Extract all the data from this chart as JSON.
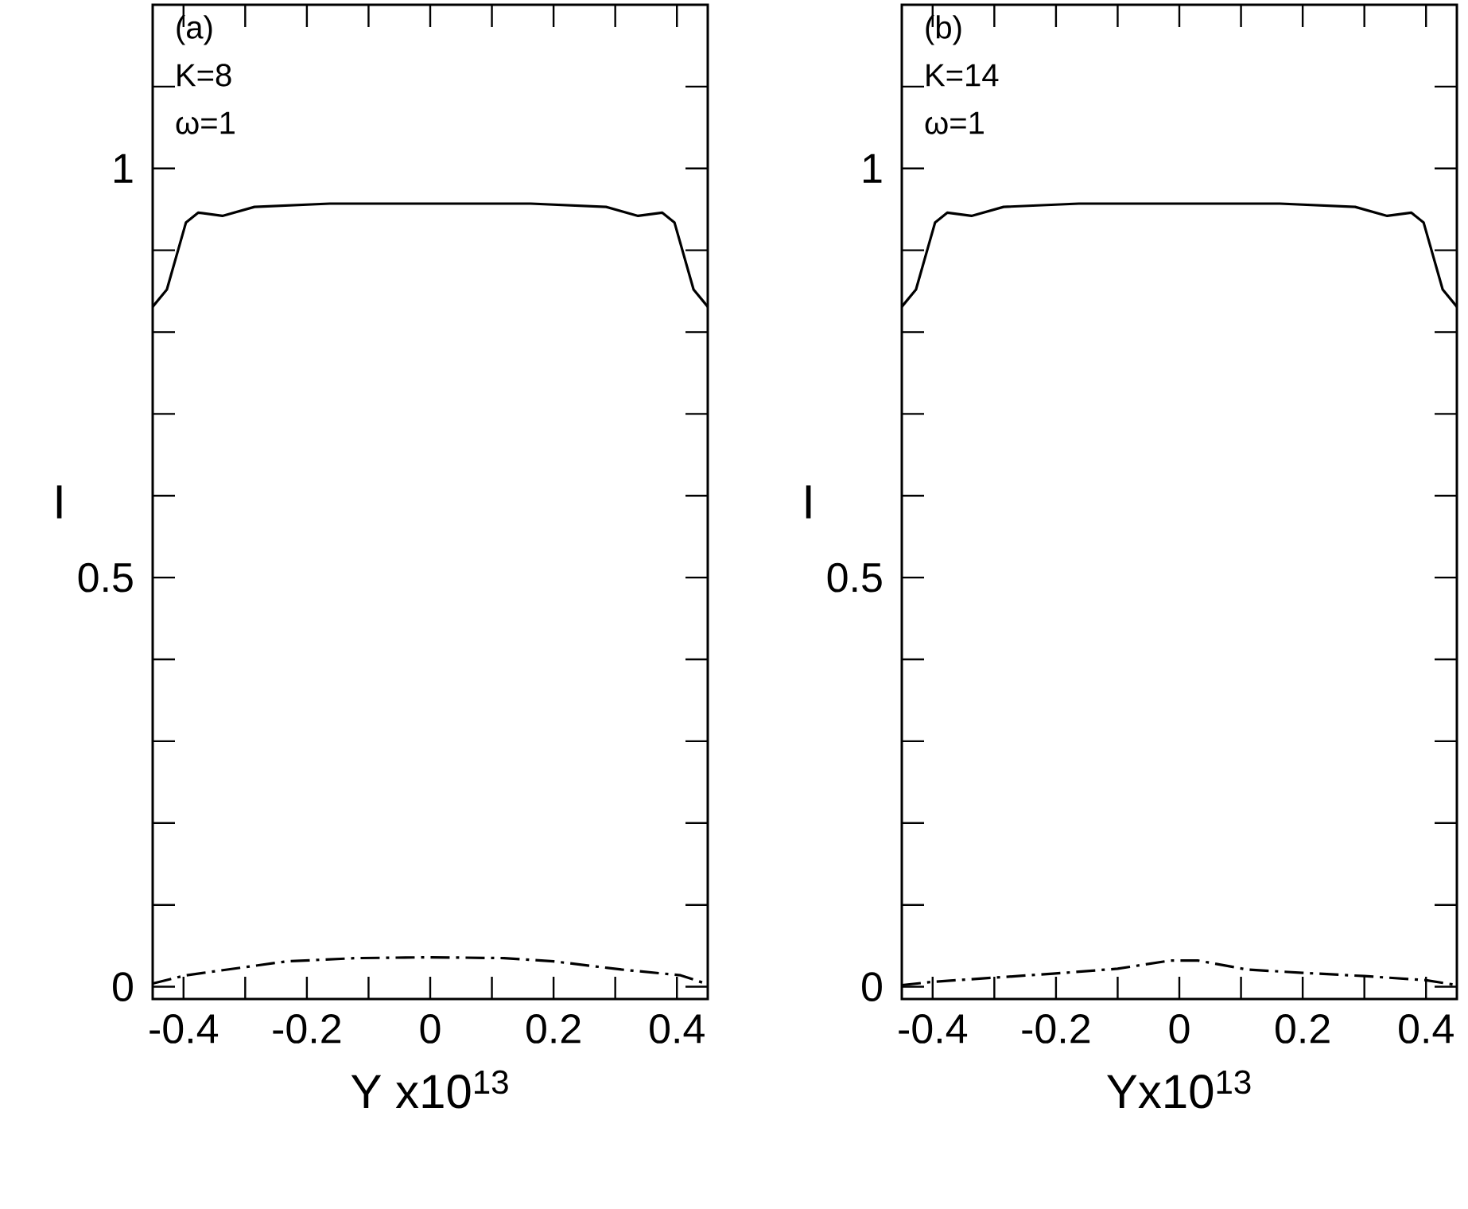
{
  "chart_data": [
    {
      "type": "line",
      "xlabel": "Y x10$^{13}$",
      "ylabel": "I",
      "annotations": [
        "(a)",
        "K=8",
        "ω=1"
      ],
      "xlim": [
        -0.45,
        0.45
      ],
      "ylim": [
        -0.015,
        1.2
      ],
      "xticks": [
        -0.4,
        {
          "value": -0.3,
          "label": null
        },
        -0.2,
        {
          "value": -0.1,
          "label": null
        },
        0,
        {
          "value": 0.1,
          "label": null
        },
        0.2,
        {
          "value": 0.3,
          "label": null
        },
        0.4
      ],
      "yticks": [
        0,
        {
          "value": 0.1,
          "label": null
        },
        {
          "value": 0.2,
          "label": null
        },
        {
          "value": 0.3,
          "label": null
        },
        {
          "value": 0.4,
          "label": null
        },
        0.5,
        {
          "value": 0.6,
          "label": null
        },
        {
          "value": 0.7,
          "label": null
        },
        {
          "value": 0.8,
          "label": null
        },
        {
          "value": 0.9,
          "label": null
        },
        1,
        {
          "value": 1.1,
          "label": null
        }
      ],
      "marker": "none",
      "series": [
        {
          "color": "#000000",
          "line_style": "solid",
          "x": [
            -0.45,
            -0.427,
            -0.396,
            -0.376,
            -0.337,
            -0.285,
            -0.163,
            0,
            0.163,
            0.285,
            0.337,
            0.376,
            0.396,
            0.427,
            0.45
          ],
          "values": [
            0.831,
            0.852,
            0.934,
            0.946,
            0.942,
            0.953,
            0.957,
            0.957,
            0.957,
            0.953,
            0.942,
            0.946,
            0.934,
            0.852,
            0.831
          ]
        },
        {
          "color": "#000000",
          "line_style": "dashed",
          "x": [
            -0.45,
            -0.396,
            -0.233,
            -0.12,
            0,
            0.12,
            0.2,
            0.31,
            0.406,
            0.45
          ],
          "values": [
            0.004,
            0.014,
            0.031,
            0.035,
            0.036,
            0.035,
            0.031,
            0.021,
            0.014,
            0.003
          ]
        }
      ]
    },
    {
      "type": "line",
      "xlabel": "Yx10$^{13}$",
      "ylabel": "I",
      "annotations": [
        "(b)",
        "K=14",
        "ω=1"
      ],
      "xlim": [
        -0.45,
        0.45
      ],
      "ylim": [
        -0.015,
        1.2
      ],
      "xticks": [
        -0.4,
        {
          "value": -0.3,
          "label": null
        },
        -0.2,
        {
          "value": -0.1,
          "label": null
        },
        0,
        {
          "value": 0.1,
          "label": null
        },
        0.2,
        {
          "value": 0.3,
          "label": null
        },
        0.4
      ],
      "yticks": [
        0,
        {
          "value": 0.1,
          "label": null
        },
        {
          "value": 0.2,
          "label": null
        },
        {
          "value": 0.3,
          "label": null
        },
        {
          "value": 0.4,
          "label": null
        },
        0.5,
        {
          "value": 0.6,
          "label": null
        },
        {
          "value": 0.7,
          "label": null
        },
        {
          "value": 0.8,
          "label": null
        },
        {
          "value": 0.9,
          "label": null
        },
        1,
        {
          "value": 1.1,
          "label": null
        }
      ],
      "marker": "none",
      "series": [
        {
          "color": "#000000",
          "line_style": "solid",
          "x": [
            -0.45,
            -0.427,
            -0.396,
            -0.376,
            -0.337,
            -0.285,
            -0.163,
            0,
            0.163,
            0.285,
            0.337,
            0.376,
            0.396,
            0.427,
            0.45
          ],
          "values": [
            0.831,
            0.852,
            0.934,
            0.946,
            0.942,
            0.953,
            0.957,
            0.957,
            0.957,
            0.953,
            0.942,
            0.946,
            0.934,
            0.852,
            0.831
          ]
        },
        {
          "color": "#000000",
          "line_style": "dashed",
          "x": [
            -0.45,
            -0.4,
            -0.205,
            -0.1,
            -0.015,
            0.03,
            0.11,
            0.2,
            0.3,
            0.4,
            0.45
          ],
          "values": [
            0.002,
            0.006,
            0.016,
            0.022,
            0.032,
            0.032,
            0.021,
            0.017,
            0.013,
            0.008,
            0.002
          ]
        }
      ]
    }
  ]
}
